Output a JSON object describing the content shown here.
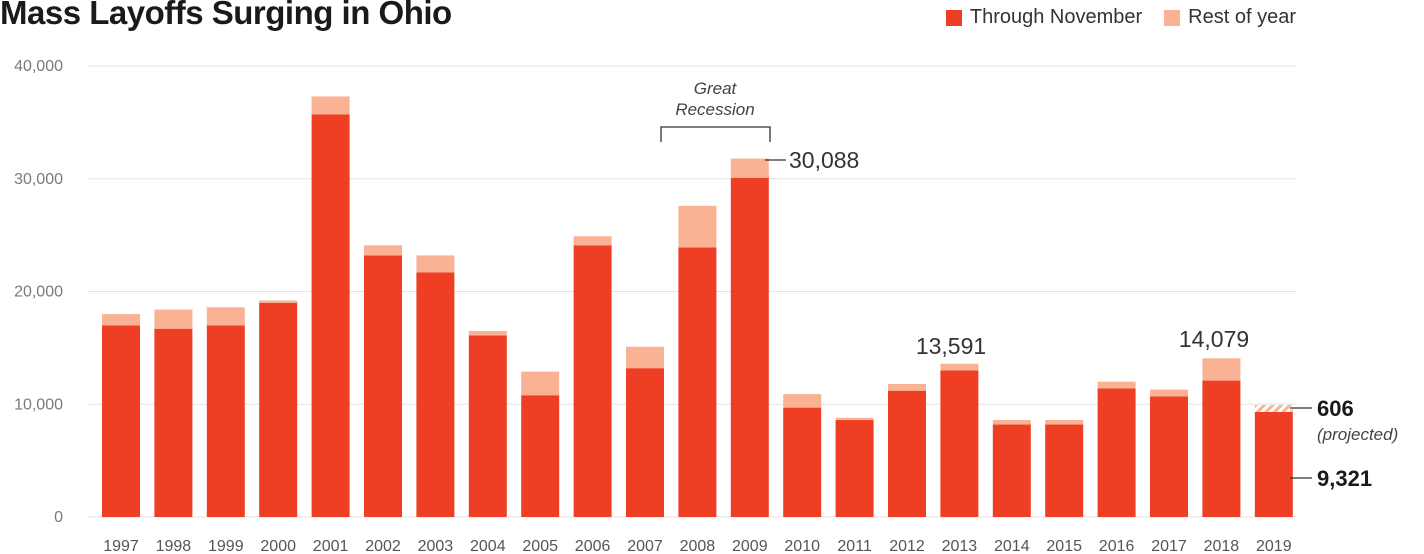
{
  "title": "Mass Layoffs Surging in Ohio",
  "legend": {
    "through_november": "Through November",
    "rest_of_year": "Rest of year"
  },
  "colors": {
    "through_november": "#ee3e24",
    "rest_of_year": "#f9b293",
    "grid": "#e3e3e3"
  },
  "chart_data": {
    "type": "bar",
    "stacked": true,
    "categories": [
      "1997",
      "1998",
      "1999",
      "2000",
      "2001",
      "2002",
      "2003",
      "2004",
      "2005",
      "2006",
      "2007",
      "2008",
      "2009",
      "2010",
      "2011",
      "2012",
      "2013",
      "2014",
      "2015",
      "2016",
      "2017",
      "2018",
      "2019"
    ],
    "series": [
      {
        "name": "Through November",
        "values": [
          17000,
          16700,
          17000,
          19000,
          35700,
          23200,
          21700,
          16100,
          10800,
          24100,
          13200,
          23900,
          30088,
          9700,
          8600,
          11200,
          13000,
          8200,
          8200,
          11400,
          10700,
          12100,
          9321
        ]
      },
      {
        "name": "Rest of year",
        "values": [
          1000,
          1700,
          1600,
          200,
          1600,
          900,
          1500,
          400,
          2100,
          800,
          1900,
          3700,
          1700,
          1200,
          200,
          600,
          591,
          400,
          400,
          600,
          600,
          1979,
          606
        ]
      }
    ],
    "ylim": [
      0,
      40000
    ],
    "yticks": [
      0,
      10000,
      20000,
      30000,
      40000
    ],
    "ytick_labels": [
      "0",
      "10,000",
      "20,000",
      "30,000",
      "40,000"
    ],
    "grid": true,
    "legend_position": "top-right",
    "annotations": {
      "great_recession_line1": "Great",
      "great_recession_line2": "Recession",
      "label_2009": "30,088",
      "label_2013": "13,591",
      "label_2018": "14,079",
      "label_2019_projected_value": "606",
      "label_2019_projected_note": "(projected)",
      "label_2019_value": "9,321"
    }
  }
}
